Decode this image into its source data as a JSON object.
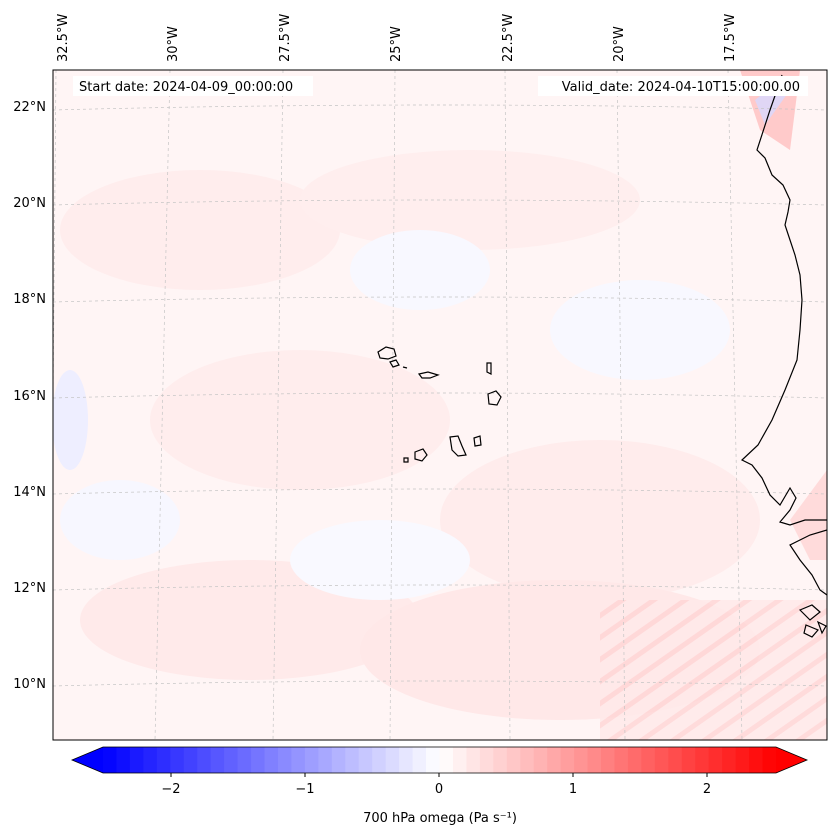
{
  "map": {
    "start_label": "Start date: 2024-04-09_00:00:00",
    "valid_label": "Valid_date: 2024-04-10T15:00:00.00",
    "lon_labels": [
      "32.5°W",
      "30°W",
      "27.5°W",
      "25°W",
      "22.5°W",
      "20°W",
      "17.5°W"
    ],
    "lat_labels": [
      "22°N",
      "20°N",
      "18°N",
      "16°N",
      "14°N",
      "12°N",
      "10°N"
    ],
    "colors": {
      "negative": "#0000ff",
      "neutral": "#ffffff",
      "positive": "#ff0000",
      "coastline": "#000000",
      "gridline": "#b8b8b8"
    }
  },
  "colorbar": {
    "tick_labels": [
      "−2",
      "−1",
      "0",
      "1",
      "2"
    ],
    "label": "700 hPa omega (Pa s⁻¹)",
    "range": [
      -2.5,
      2.5
    ]
  }
}
